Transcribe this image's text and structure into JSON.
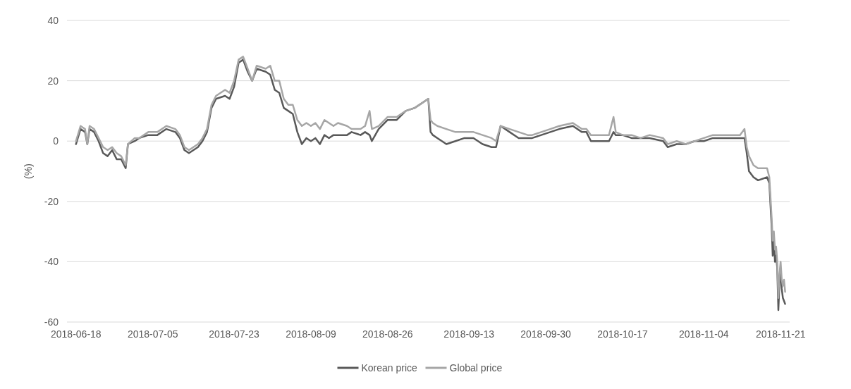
{
  "chart_data": {
    "type": "line",
    "ylabel": "(%)",
    "x": [
      "2018-06-18",
      "2018-06-19",
      "2018-06-20",
      "2018-06-20T12:00",
      "2018-06-21",
      "2018-06-22",
      "2018-06-23",
      "2018-06-24",
      "2018-06-25",
      "2018-06-26",
      "2018-06-27",
      "2018-06-28",
      "2018-06-29",
      "2018-06-29T12:00",
      "2018-07-01",
      "2018-07-02",
      "2018-07-04",
      "2018-07-06",
      "2018-07-08",
      "2018-07-10",
      "2018-07-11",
      "2018-07-12",
      "2018-07-13",
      "2018-07-15",
      "2018-07-16",
      "2018-07-17",
      "2018-07-18",
      "2018-07-19",
      "2018-07-21",
      "2018-07-22",
      "2018-07-23",
      "2018-07-24",
      "2018-07-25",
      "2018-07-26",
      "2018-07-27",
      "2018-07-28",
      "2018-07-30",
      "2018-07-31",
      "2018-08-01",
      "2018-08-02",
      "2018-08-03",
      "2018-08-04",
      "2018-08-05",
      "2018-08-06",
      "2018-08-07",
      "2018-08-08",
      "2018-08-09",
      "2018-08-10",
      "2018-08-11",
      "2018-08-12",
      "2018-08-13",
      "2018-08-14",
      "2018-08-15",
      "2018-08-17",
      "2018-08-18",
      "2018-08-20",
      "2018-08-21",
      "2018-08-22",
      "2018-08-22T12:00",
      "2018-08-24",
      "2018-08-26",
      "2018-08-28",
      "2018-08-30",
      "2018-09-01",
      "2018-09-03",
      "2018-09-04",
      "2018-09-04T12:00",
      "2018-09-05",
      "2018-09-06",
      "2018-09-08",
      "2018-09-10",
      "2018-09-12",
      "2018-09-14",
      "2018-09-16",
      "2018-09-18",
      "2018-09-19",
      "2018-09-20",
      "2018-09-22",
      "2018-09-24",
      "2018-09-26",
      "2018-09-27",
      "2018-09-29",
      "2018-10-01",
      "2018-10-03",
      "2018-10-06",
      "2018-10-08",
      "2018-10-09",
      "2018-10-10",
      "2018-10-14",
      "2018-10-15",
      "2018-10-15T12:00",
      "2018-10-17",
      "2018-10-19",
      "2018-10-21",
      "2018-10-23",
      "2018-10-26",
      "2018-10-27",
      "2018-10-29",
      "2018-10-31",
      "2018-11-02",
      "2018-11-04",
      "2018-11-06",
      "2018-11-08",
      "2018-11-12",
      "2018-11-13",
      "2018-11-13T12:00",
      "2018-11-14",
      "2018-11-15",
      "2018-11-16",
      "2018-11-18",
      "2018-11-18T12:00",
      "2018-11-19",
      "2018-11-19T06:00",
      "2018-11-19T12:00",
      "2018-11-19T18:00",
      "2018-11-20",
      "2018-11-20T06:00",
      "2018-11-20T12:00",
      "2018-11-20T18:00",
      "2018-11-21",
      "2018-11-21T06:00",
      "2018-11-21T12:00",
      "2018-11-21T18:00",
      "2018-11-22"
    ],
    "series": [
      {
        "name": "Korean price",
        "color": "#595959",
        "values": [
          -1,
          4,
          3,
          -1,
          4,
          3,
          0,
          -4,
          -5,
          -3,
          -6,
          -6,
          -9,
          -1,
          0,
          1,
          2,
          2,
          4,
          3,
          1,
          -3,
          -4,
          -2,
          0,
          3,
          11,
          14,
          15,
          14,
          18,
          26,
          27,
          23,
          20,
          24,
          23,
          22,
          17,
          16,
          11,
          10,
          9,
          3,
          -1,
          1,
          0,
          1,
          -1,
          2,
          1,
          2,
          2,
          2,
          3,
          2,
          3,
          2,
          0,
          4,
          7,
          7,
          10,
          11,
          13,
          14,
          3,
          2,
          1,
          -1,
          0,
          1,
          1,
          -1,
          -2,
          -2,
          5,
          3,
          1,
          1,
          1,
          2,
          3,
          4,
          5,
          3,
          3,
          0,
          0,
          3,
          2,
          2,
          1,
          1,
          1,
          0,
          -2,
          -1,
          -1,
          0,
          0,
          1,
          1,
          1,
          1,
          -4,
          -10,
          -12,
          -13,
          -12,
          -14,
          -28,
          -38,
          -33,
          -40,
          -38,
          -42,
          -56,
          -47,
          -43,
          -49,
          -52,
          -53,
          -54
        ]
      },
      {
        "name": "Global price",
        "color": "#a6a6a6",
        "values": [
          0,
          5,
          4,
          -1,
          5,
          4,
          1,
          -2,
          -3,
          -2,
          -4,
          -5,
          -8,
          -1,
          1,
          1,
          3,
          3,
          5,
          4,
          2,
          -2,
          -3,
          -1,
          1,
          4,
          12,
          15,
          17,
          16,
          20,
          27,
          28,
          24,
          20,
          25,
          24,
          25,
          20,
          20,
          14,
          12,
          12,
          7,
          5,
          6,
          5,
          6,
          4,
          7,
          6,
          5,
          6,
          5,
          4,
          4,
          5,
          10,
          4,
          5,
          8,
          8,
          10,
          11,
          13,
          14,
          7,
          6,
          5,
          4,
          3,
          3,
          3,
          2,
          1,
          0,
          5,
          4,
          3,
          2,
          2,
          3,
          4,
          5,
          6,
          4,
          4,
          2,
          2,
          8,
          3,
          2,
          2,
          1,
          2,
          1,
          -1,
          0,
          -1,
          0,
          1,
          2,
          2,
          2,
          4,
          -2,
          -5,
          -8,
          -9,
          -9,
          -12,
          -25,
          -33,
          -30,
          -36,
          -35,
          -40,
          -52,
          -44,
          -40,
          -46,
          -48,
          -46,
          -50
        ]
      }
    ],
    "xlim": [
      "2018-06-16",
      "2018-11-23"
    ],
    "xticks": [
      "2018-06-18",
      "2018-07-05",
      "2018-07-23",
      "2018-08-09",
      "2018-08-26",
      "2018-09-13",
      "2018-09-30",
      "2018-10-17",
      "2018-11-04",
      "2018-11-21"
    ],
    "ylim": [
      -60,
      40
    ],
    "yticks": [
      -60,
      -40,
      -20,
      0,
      20,
      40
    ],
    "grid": "y",
    "legend": "bottom",
    "marker": "none",
    "line_style": "solid"
  }
}
